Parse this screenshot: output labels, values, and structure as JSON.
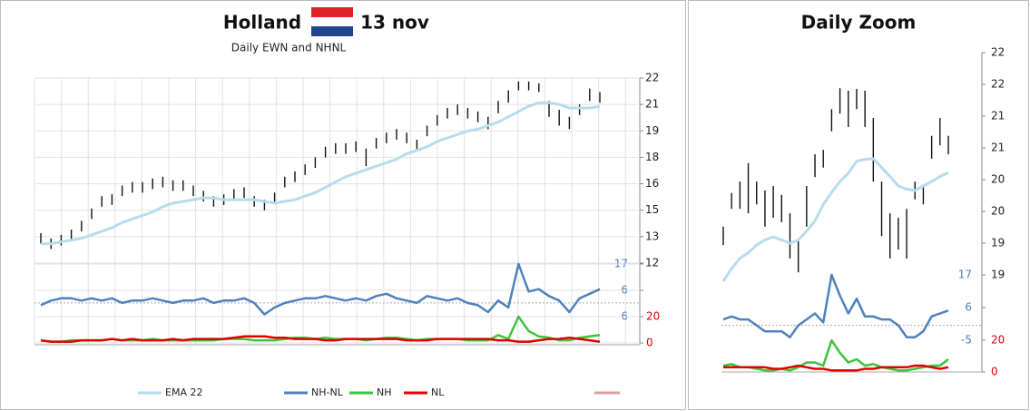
{
  "chart_data": [
    {
      "type": "stock",
      "title": "Holland",
      "date": "13 nov",
      "subtitle": "Daily EWN and NHNL",
      "ylim": [
        11.5,
        22
      ],
      "yticks": [
        22,
        {
          "value": 20.5,
          "label": "21"
        },
        19,
        {
          "value": 17.5,
          "label": "18"
        },
        16,
        {
          "value": 14.5,
          "label": "15"
        },
        13,
        {
          "value": 11.5,
          "label": "12"
        }
      ],
      "y2lim": [
        -6,
        17
      ],
      "y2ticks": [
        17,
        {
          "value": 5.5,
          "label": "6"
        },
        -6
      ],
      "y3lim": [
        0,
        20
      ],
      "y3ticks": [
        20,
        0
      ],
      "grid": true,
      "legend": true,
      "high": [
        13.2,
        12.9,
        13.1,
        13.4,
        13.9,
        14.6,
        15.3,
        15.4,
        15.9,
        16.1,
        16.1,
        16.3,
        16.4,
        16.2,
        16.2,
        15.9,
        15.6,
        15.3,
        15.4,
        15.7,
        15.8,
        15.3,
        15.1,
        15.5,
        16.4,
        16.7,
        17.1,
        17.5,
        18.1,
        18.3,
        18.3,
        18.4,
        18.0,
        18.6,
        18.9,
        19.1,
        18.9,
        18.5,
        19.3,
        19.9,
        20.3,
        20.5,
        20.3,
        20.1,
        19.8,
        20.7,
        21.3,
        21.8,
        21.8,
        21.7,
        20.7,
        20.2,
        19.8,
        20.5,
        21.4,
        21.2
      ],
      "low": [
        12.6,
        12.3,
        12.5,
        12.8,
        13.3,
        14.0,
        14.7,
        14.8,
        15.3,
        15.5,
        15.5,
        15.7,
        15.8,
        15.6,
        15.6,
        15.3,
        15.0,
        14.7,
        14.8,
        15.1,
        15.2,
        14.7,
        14.5,
        14.9,
        15.8,
        16.1,
        16.5,
        16.9,
        17.5,
        17.7,
        17.7,
        17.8,
        17.0,
        18.0,
        18.3,
        18.5,
        18.3,
        17.9,
        18.7,
        19.3,
        19.7,
        19.9,
        19.7,
        19.5,
        19.1,
        20.0,
        20.6,
        21.3,
        21.3,
        21.2,
        19.8,
        19.3,
        19.1,
        19.9,
        20.7,
        20.6
      ],
      "series": [
        {
          "name": "EMA 22",
          "color": "#b7dcee",
          "values": [
            12.6,
            12.6,
            12.7,
            12.8,
            12.9,
            13.1,
            13.3,
            13.5,
            13.8,
            14.0,
            14.2,
            14.4,
            14.7,
            14.9,
            15.0,
            15.1,
            15.2,
            15.2,
            15.1,
            15.1,
            15.1,
            15.1,
            15.0,
            14.9,
            15.0,
            15.1,
            15.3,
            15.5,
            15.8,
            16.1,
            16.4,
            16.6,
            16.8,
            17.0,
            17.2,
            17.4,
            17.7,
            17.9,
            18.1,
            18.4,
            18.6,
            18.8,
            19.0,
            19.1,
            19.3,
            19.5,
            19.8,
            20.1,
            20.4,
            20.6,
            20.6,
            20.5,
            20.3,
            20.3,
            20.3,
            20.4
          ]
        },
        {
          "name": "NH-NL",
          "color": "#4f81bd",
          "axis": "y2",
          "values": [
            -1,
            1,
            2,
            2,
            1,
            2,
            1,
            2,
            0,
            1,
            1,
            2,
            1,
            0,
            1,
            1,
            2,
            0,
            1,
            1,
            2,
            0,
            -5,
            -2,
            0,
            1,
            2,
            2,
            3,
            2,
            1,
            2,
            1,
            3,
            4,
            2,
            1,
            0,
            3,
            2,
            1,
            2,
            0,
            -1,
            -4,
            1,
            -2,
            17,
            5,
            6,
            3,
            1,
            -4,
            2,
            4,
            6
          ]
        },
        {
          "name": "NH",
          "color": "#3cc43c",
          "axis": "y3",
          "values": [
            2,
            1,
            1,
            2,
            2,
            2,
            2,
            3,
            2,
            2,
            2,
            3,
            2,
            2,
            2,
            2,
            2,
            2,
            3,
            3,
            3,
            2,
            2,
            2,
            3,
            4,
            4,
            3,
            4,
            3,
            3,
            3,
            2,
            3,
            4,
            4,
            3,
            2,
            3,
            3,
            3,
            3,
            2,
            2,
            2,
            6,
            3,
            20,
            9,
            5,
            4,
            2,
            2,
            4,
            5,
            6
          ]
        },
        {
          "name": "NL",
          "color": "#e00000",
          "axis": "y3",
          "values": [
            2,
            1,
            1,
            1,
            2,
            2,
            2,
            3,
            2,
            3,
            2,
            2,
            2,
            3,
            2,
            3,
            3,
            3,
            3,
            4,
            5,
            5,
            5,
            4,
            4,
            3,
            3,
            3,
            2,
            2,
            3,
            3,
            3,
            3,
            3,
            3,
            2,
            2,
            2,
            3,
            3,
            3,
            3,
            3,
            3,
            2,
            2,
            1,
            1,
            2,
            3,
            3,
            4,
            3,
            2,
            1
          ]
        }
      ]
    },
    {
      "type": "stock",
      "title": "Daily Zoom",
      "ylim": [
        18.5,
        22
      ],
      "yticks": [
        22,
        {
          "value": 21.5,
          "label": "22"
        },
        21,
        {
          "value": 20.5,
          "label": "21"
        },
        20,
        {
          "value": 19.5,
          "label": "20"
        },
        19,
        {
          "value": 18.5,
          "label": "19"
        }
      ],
      "y2lim": [
        -5,
        17
      ],
      "y2ticks": [
        17,
        6,
        -5
      ],
      "y3lim": [
        0,
        20
      ],
      "y3ticks": [
        20,
        0
      ],
      "grid": false,
      "legend": false,
      "high": [
        19.26,
        19.79,
        19.97,
        20.26,
        19.97,
        19.83,
        19.9,
        19.76,
        19.47,
        19.04,
        19.9,
        20.4,
        20.47,
        21.11,
        21.44,
        21.4,
        21.43,
        21.4,
        20.97,
        19.97,
        19.47,
        19.4,
        19.54,
        19.97,
        19.9,
        20.69,
        20.97,
        20.69
      ],
      "low": [
        18.97,
        19.54,
        19.54,
        19.47,
        19.61,
        19.26,
        19.4,
        19.33,
        18.76,
        18.54,
        19.26,
        20.04,
        20.19,
        20.76,
        21.04,
        20.83,
        21.11,
        20.83,
        19.97,
        19.11,
        18.76,
        18.9,
        18.76,
        19.69,
        19.61,
        20.33,
        20.54,
        20.4
      ],
      "series": [
        {
          "color": "#b7dcee",
          "values": [
            18.4,
            18.6,
            18.76,
            18.85,
            18.97,
            19.05,
            19.1,
            19.05,
            19.0,
            19.05,
            19.19,
            19.35,
            19.61,
            19.8,
            19.97,
            20.1,
            20.29,
            20.32,
            20.33,
            20.19,
            20.05,
            19.9,
            19.85,
            19.83,
            19.9,
            19.97,
            20.05,
            20.11
          ]
        },
        {
          "color": "#4f81bd",
          "axis": "y2",
          "values": [
            2,
            3,
            2,
            2,
            0,
            -2,
            -2,
            -2,
            -4,
            0,
            2,
            4,
            1,
            17,
            10,
            4,
            9,
            3,
            3,
            2,
            2,
            0,
            -4,
            -4,
            -2,
            3,
            4,
            5
          ]
        },
        {
          "color": "#3cc43c",
          "axis": "y3",
          "values": [
            4,
            5,
            3,
            3,
            2,
            1,
            1,
            2,
            1,
            3,
            6,
            6,
            4,
            20,
            12,
            6,
            8,
            4,
            5,
            3,
            2,
            1,
            1,
            2,
            3,
            4,
            4,
            8
          ]
        },
        {
          "color": "#e00000",
          "axis": "y3",
          "values": [
            3,
            3,
            3,
            3,
            3,
            3,
            2,
            2,
            3,
            4,
            3,
            2,
            2,
            1,
            1,
            1,
            1,
            2,
            2,
            3,
            3,
            3,
            3,
            4,
            4,
            3,
            2,
            3
          ]
        }
      ]
    }
  ]
}
